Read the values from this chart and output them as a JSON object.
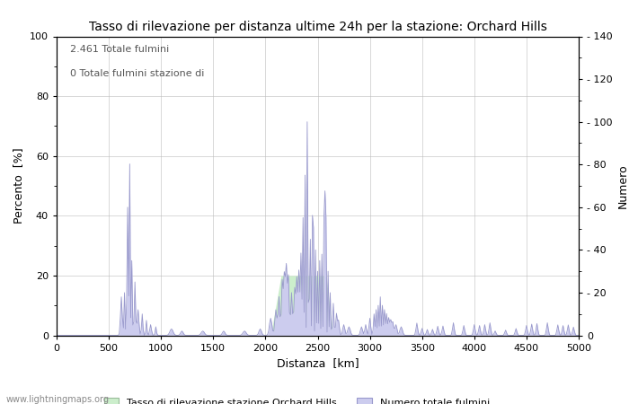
{
  "title": "Tasso di rilevazione per distanza ultime 24h per la stazione: Orchard Hills",
  "xlabel": "Distanza  [km]",
  "ylabel_left": "Percento  [%]",
  "ylabel_right": "Numero",
  "annotation_line1": "2.461 Totale fulmini",
  "annotation_line2": "0 Totale fulmini stazione di",
  "legend_green": "Tasso di rilevazione stazione Orchard Hills",
  "legend_blue": "Numero totale fulmini",
  "footer": "www.lightningmaps.org",
  "xlim": [
    0,
    5000
  ],
  "ylim_left": [
    0,
    100
  ],
  "ylim_right": [
    0,
    140
  ],
  "xticks": [
    0,
    500,
    1000,
    1500,
    2000,
    2500,
    3000,
    3500,
    4000,
    4500,
    5000
  ],
  "yticks_left": [
    0,
    20,
    40,
    60,
    80,
    100
  ],
  "yticks_right": [
    0,
    20,
    40,
    60,
    80,
    100,
    120,
    140
  ],
  "color_blue_line": "#9999cc",
  "color_blue_fill": "#ccccee",
  "color_green_fill": "#cceecc",
  "color_green_line": "#99bb99",
  "bg_color": "#ffffff",
  "grid_color": "#bbbbbb"
}
